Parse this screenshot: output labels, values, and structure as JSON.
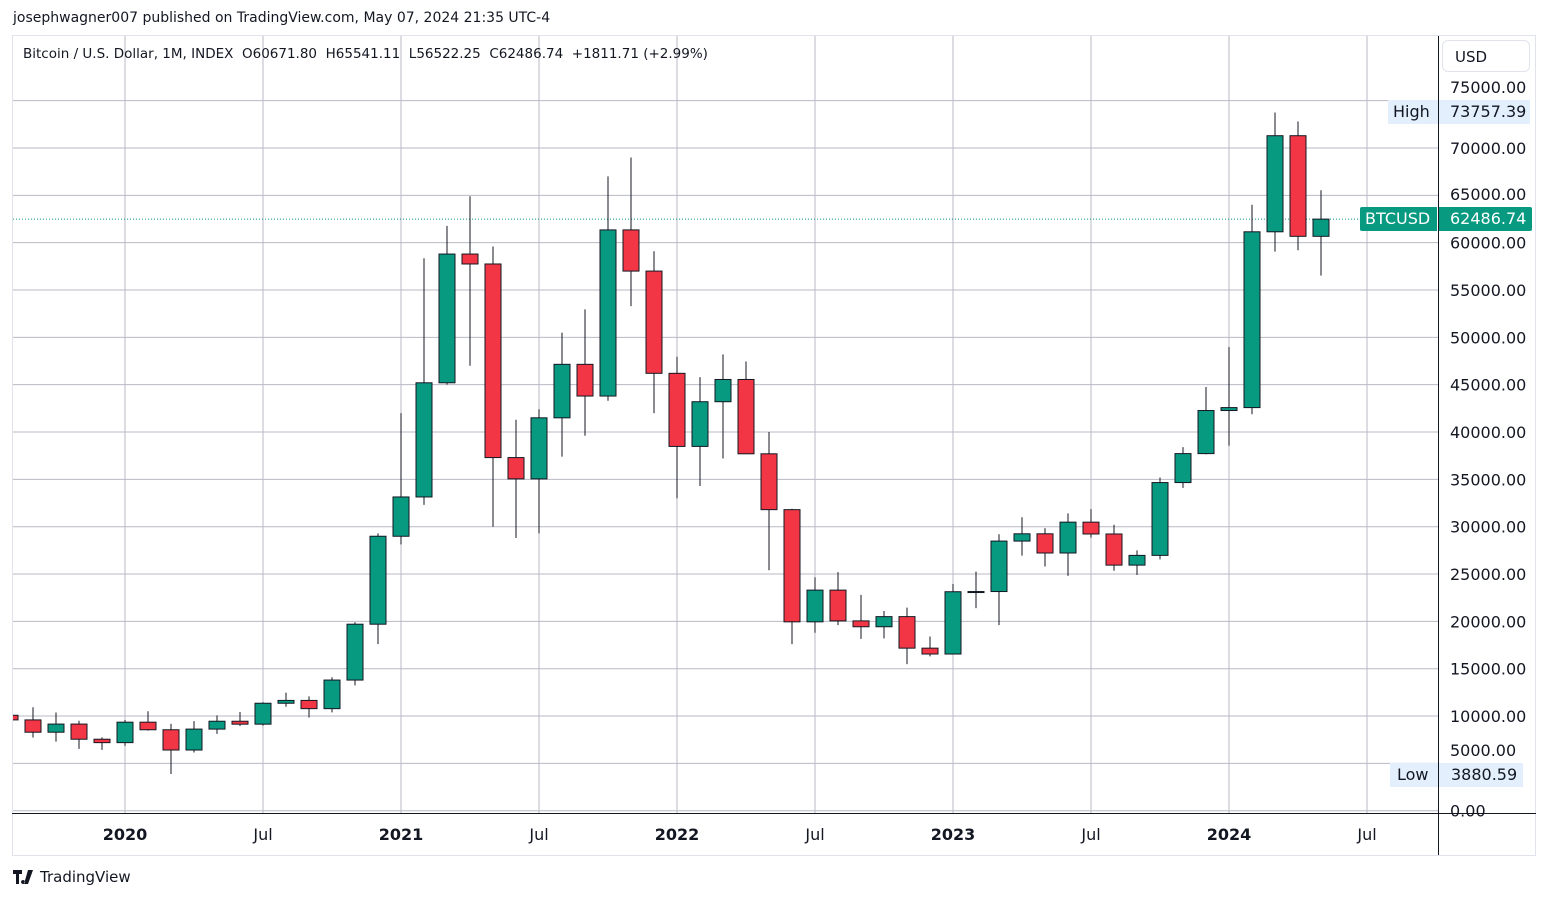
{
  "header": {
    "published": "josephwagner007 published on TradingView.com, May 07, 2024 21:35 UTC-4"
  },
  "legend": {
    "symbol": "Bitcoin / U.S. Dollar, 1M, INDEX",
    "open": "O60671.80",
    "high": "H65541.11",
    "low": "L56522.25",
    "close": "C62486.74",
    "change": "+1811.71 (+2.99%)"
  },
  "currency": "USD",
  "labels": {
    "high_label": "High",
    "high_value": "73757.39",
    "low_label": "Low",
    "low_value": "3880.59",
    "symbol_tag": "BTCUSD",
    "last_price": "62486.74"
  },
  "colors": {
    "up": "#089981",
    "down": "#f23645",
    "grid": "#b9bac4"
  },
  "branding": {
    "logo_text": "TradingView"
  },
  "chart_data": {
    "type": "candlestick",
    "title": "Bitcoin / U.S. Dollar, 1M, INDEX",
    "interval": "1M",
    "ylim": [
      0,
      75000
    ],
    "yticks": [
      "0.00",
      "5000.00",
      "10000.00",
      "15000.00",
      "20000.00",
      "25000.00",
      "30000.00",
      "35000.00",
      "40000.00",
      "45000.00",
      "50000.00",
      "55000.00",
      "60000.00",
      "65000.00",
      "70000.00",
      "75000.00"
    ],
    "xticks": [
      {
        "label": "2020",
        "date": "2020-01",
        "bold": true
      },
      {
        "label": "Jul",
        "date": "2020-07"
      },
      {
        "label": "2021",
        "date": "2021-01",
        "bold": true
      },
      {
        "label": "Jul",
        "date": "2021-07"
      },
      {
        "label": "2022",
        "date": "2022-01",
        "bold": true
      },
      {
        "label": "Jul",
        "date": "2022-07"
      },
      {
        "label": "2023",
        "date": "2023-01",
        "bold": true
      },
      {
        "label": "Jul",
        "date": "2023-07"
      },
      {
        "label": "2024",
        "date": "2024-01",
        "bold": true
      },
      {
        "label": "Jul",
        "date": "2024-07"
      }
    ],
    "grid": true,
    "candles": [
      [
        "2019-08",
        10080,
        12320,
        9400,
        9590
      ],
      [
        "2019-09",
        9590,
        10930,
        7730,
        8290
      ],
      [
        "2019-10",
        8290,
        10370,
        7300,
        9150
      ],
      [
        "2019-11",
        9150,
        9500,
        6530,
        7550
      ],
      [
        "2019-12",
        7550,
        7740,
        6430,
        7190
      ],
      [
        "2020-01",
        7190,
        9580,
        6850,
        9350
      ],
      [
        "2020-02",
        9350,
        10500,
        8460,
        8550
      ],
      [
        "2020-03",
        8550,
        9190,
        3880.59,
        6410
      ],
      [
        "2020-04",
        6410,
        9460,
        6150,
        8620
      ],
      [
        "2020-05",
        8620,
        10070,
        8110,
        9450
      ],
      [
        "2020-06",
        9450,
        10420,
        8930,
        9140
      ],
      [
        "2020-07",
        9140,
        11450,
        8990,
        11350
      ],
      [
        "2020-08",
        11350,
        12470,
        10980,
        11650
      ],
      [
        "2020-09",
        11650,
        12070,
        9850,
        10780
      ],
      [
        "2020-10",
        10780,
        14100,
        10380,
        13800
      ],
      [
        "2020-11",
        13800,
        19900,
        13240,
        19700
      ],
      [
        "2020-12",
        19700,
        29300,
        17600,
        28990
      ],
      [
        "2021-01",
        28990,
        42000,
        28130,
        33140
      ],
      [
        "2021-02",
        33140,
        58350,
        32300,
        45200
      ],
      [
        "2021-03",
        45200,
        61780,
        45000,
        58800
      ],
      [
        "2021-04",
        58800,
        64900,
        47000,
        57750
      ],
      [
        "2021-05",
        57750,
        59600,
        30000,
        37300
      ],
      [
        "2021-06",
        37300,
        41300,
        28800,
        35050
      ],
      [
        "2021-07",
        35050,
        42400,
        29300,
        41500
      ],
      [
        "2021-08",
        41500,
        50500,
        37400,
        47150
      ],
      [
        "2021-09",
        47150,
        52950,
        39600,
        43800
      ],
      [
        "2021-10",
        43800,
        67000,
        43300,
        61350
      ],
      [
        "2021-11",
        61350,
        69000,
        53300,
        57000
      ],
      [
        "2021-12",
        57000,
        59100,
        42000,
        46200
      ],
      [
        "2022-01",
        46200,
        47950,
        33000,
        38480
      ],
      [
        "2022-02",
        38480,
        45800,
        34300,
        43200
      ],
      [
        "2022-03",
        43200,
        48200,
        37200,
        45550
      ],
      [
        "2022-04",
        45550,
        47450,
        37700,
        37700
      ],
      [
        "2022-05",
        37700,
        40000,
        25400,
        31800
      ],
      [
        "2022-06",
        31800,
        31900,
        17600,
        19950
      ],
      [
        "2022-07",
        19950,
        24650,
        18800,
        23300
      ],
      [
        "2022-08",
        23300,
        25200,
        19600,
        20050
      ],
      [
        "2022-09",
        20050,
        22800,
        18150,
        19430
      ],
      [
        "2022-10",
        19430,
        21100,
        18200,
        20500
      ],
      [
        "2022-11",
        20500,
        21450,
        15480,
        17170
      ],
      [
        "2022-12",
        17170,
        18400,
        16300,
        16550
      ],
      [
        "2023-01",
        16550,
        23950,
        16500,
        23130
      ],
      [
        "2023-02",
        23130,
        25250,
        21400,
        23150
      ],
      [
        "2023-03",
        23150,
        29200,
        19600,
        28480
      ],
      [
        "2023-04",
        28480,
        31000,
        26950,
        29250
      ],
      [
        "2023-05",
        29250,
        29850,
        25800,
        27220
      ],
      [
        "2023-06",
        27220,
        31400,
        24800,
        30480
      ],
      [
        "2023-07",
        30480,
        31850,
        28850,
        29230
      ],
      [
        "2023-08",
        29230,
        30200,
        25350,
        25940
      ],
      [
        "2023-09",
        25940,
        27500,
        24900,
        26970
      ],
      [
        "2023-10",
        26970,
        35200,
        26550,
        34660
      ],
      [
        "2023-11",
        34660,
        38400,
        34100,
        37720
      ],
      [
        "2023-12",
        37720,
        44750,
        37640,
        42270
      ],
      [
        "2024-01",
        42270,
        48970,
        38550,
        42580
      ],
      [
        "2024-02",
        42580,
        64000,
        41880,
        61150
      ],
      [
        "2024-03",
        61150,
        73757.39,
        59050,
        71300
      ],
      [
        "2024-04",
        71300,
        72800,
        59200,
        60671.8
      ],
      [
        "2024-05",
        60671.8,
        65541.11,
        56522.25,
        62486.74
      ]
    ]
  }
}
